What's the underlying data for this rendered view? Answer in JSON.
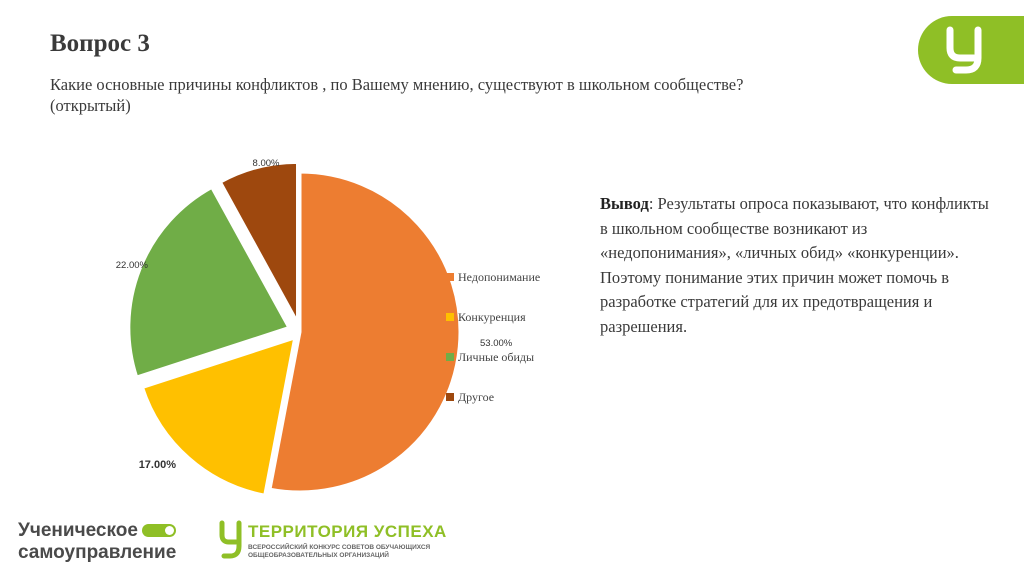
{
  "header": {
    "title": "Вопрос 3",
    "subtitle": "Какие основные причины конфликтов , по Вашему мнению, существуют в школьном сообществе? (открытый)"
  },
  "chart_data": {
    "type": "pie",
    "categories": [
      "Недопонимание",
      "Конкуренция",
      "Личные обиды",
      "Другое"
    ],
    "values": [
      53,
      17,
      22,
      8
    ],
    "data_labels": [
      "53.00%",
      "17.00%",
      "22.00%",
      "8.00%"
    ],
    "colors": [
      "#ed7d31",
      "#ffc000",
      "#70ad47",
      "#9e480e"
    ],
    "legend_position": "right"
  },
  "conclusion": {
    "heading": "Вывод",
    "text": ": Результаты опроса показывают, что конфликты в школьном сообществе возникают из «недопонимания», «личных обид» «конкуренции». Поэтому понимание этих причин может помочь в разработке стратегий для их предотвращения и разрешения."
  },
  "footer": {
    "logo1_line1": "Ученическое",
    "logo1_line2": "самоуправление",
    "logo2_title": "ТЕРРИТОРИЯ УСПЕХА",
    "logo2_sub1": "ВСЕРОССИЙСКИЙ КОНКУРС СОВЕТОВ ОБУЧАЮЩИХСЯ",
    "logo2_sub2": "ОБЩЕОБРАЗОВАТЕЛЬНЫХ ОРГАНИЗАЦИЙ"
  },
  "brand_color": "#8fbf26"
}
